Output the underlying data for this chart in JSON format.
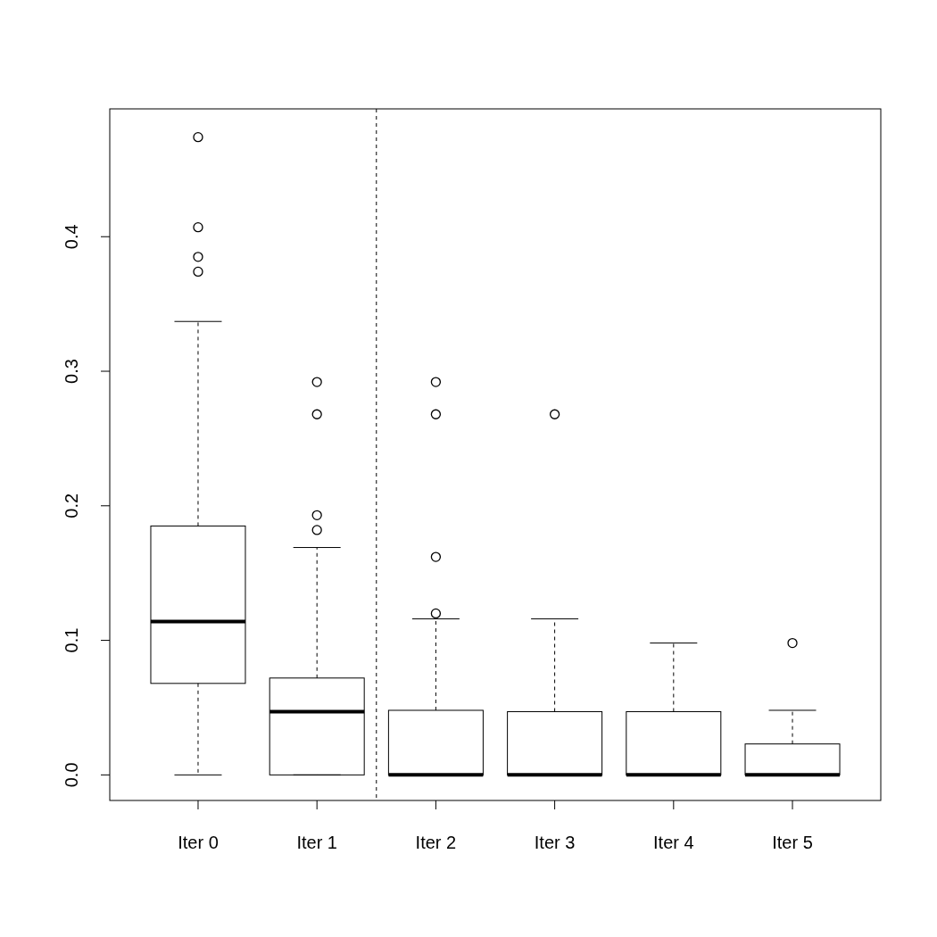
{
  "chart_data": {
    "type": "box",
    "categories": [
      "Iter 0",
      "Iter 1",
      "Iter 2",
      "Iter 3",
      "Iter 4",
      "Iter 5"
    ],
    "boxes": [
      {
        "low": 0,
        "q1": 0.068,
        "median": 0.114,
        "q3": 0.185,
        "high": 0.337,
        "outliers": [
          0.374,
          0.385,
          0.407,
          0.474
        ]
      },
      {
        "low": 0,
        "q1": 0,
        "median": 0.047,
        "q3": 0.072,
        "high": 0.169,
        "outliers": [
          0.182,
          0.193,
          0.268,
          0.292
        ]
      },
      {
        "low": 0,
        "q1": 0,
        "median": 0,
        "q3": 0.048,
        "high": 0.116,
        "outliers": [
          0.12,
          0.162,
          0.268,
          0.292
        ]
      },
      {
        "low": 0,
        "q1": 0,
        "median": 0,
        "q3": 0.047,
        "high": 0.116,
        "outliers": [
          0.268
        ]
      },
      {
        "low": 0,
        "q1": 0,
        "median": 0,
        "q3": 0.047,
        "high": 0.098
      },
      {
        "low": 0,
        "q1": 0,
        "median": 0,
        "q3": 0.023,
        "high": 0.048,
        "outliers": [
          0.098
        ]
      }
    ],
    "ylim": [
      -0.019,
      0.495
    ],
    "yticks": [
      {
        "value": 0,
        "label": "0.0"
      },
      0.1,
      0.2,
      0.3,
      0.4
    ]
  }
}
